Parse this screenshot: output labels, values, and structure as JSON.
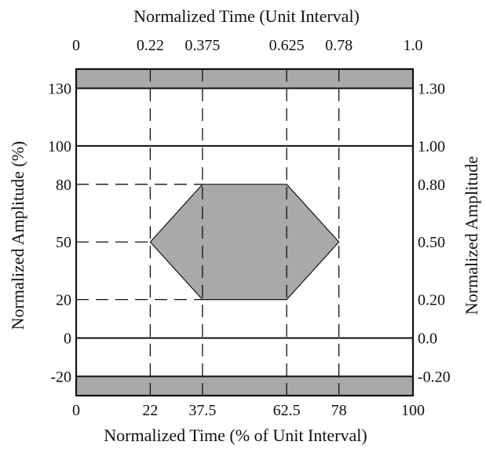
{
  "chart_data": {
    "type": "mask-diagram",
    "top_axis": {
      "title": "Normalized Time (Unit Interval)",
      "ticks": [
        {
          "value": 0,
          "label": "0"
        },
        {
          "value": 22,
          "label": "0.22"
        },
        {
          "value": 37.5,
          "label": "0.375"
        },
        {
          "value": 62.5,
          "label": "0.625"
        },
        {
          "value": 78,
          "label": "0.78"
        },
        {
          "value": 100,
          "label": "1.0"
        }
      ]
    },
    "bottom_axis": {
      "title": "Normalized Time (% of Unit Interval)",
      "range": [
        0,
        100
      ],
      "ticks": [
        {
          "value": 0,
          "label": "0"
        },
        {
          "value": 22,
          "label": "22"
        },
        {
          "value": 37.5,
          "label": "37.5"
        },
        {
          "value": 62.5,
          "label": "62.5"
        },
        {
          "value": 78,
          "label": "78"
        },
        {
          "value": 100,
          "label": "100"
        }
      ]
    },
    "left_axis": {
      "title": "Normalized Amplitude (%)",
      "range": [
        -30,
        140
      ],
      "ticks": [
        {
          "value": 130,
          "label": "130"
        },
        {
          "value": 100,
          "label": "100"
        },
        {
          "value": 80,
          "label": "80"
        },
        {
          "value": 50,
          "label": "50"
        },
        {
          "value": 20,
          "label": "20"
        },
        {
          "value": 0,
          "label": "0"
        },
        {
          "value": -20,
          "label": "-20"
        }
      ]
    },
    "right_axis": {
      "title": "Normalized Amplitude",
      "ticks": [
        {
          "value": 130,
          "label": "1.30"
        },
        {
          "value": 100,
          "label": "1.00"
        },
        {
          "value": 80,
          "label": "0.80"
        },
        {
          "value": 50,
          "label": "0.50"
        },
        {
          "value": 20,
          "label": "0.20"
        },
        {
          "value": 0,
          "label": "0.0"
        },
        {
          "value": -20,
          "label": "-0.20"
        }
      ]
    },
    "keepout_top": {
      "from": 130,
      "to": 140
    },
    "keepout_bottom": {
      "from": -30,
      "to": -20
    },
    "solid_levels": [
      100,
      0
    ],
    "mask_polygon": [
      {
        "x": 22,
        "y": 50
      },
      {
        "x": 37.5,
        "y": 80
      },
      {
        "x": 62.5,
        "y": 80
      },
      {
        "x": 78,
        "y": 50
      },
      {
        "x": 62.5,
        "y": 20
      },
      {
        "x": 37.5,
        "y": 20
      }
    ],
    "dashed_verticals": [
      22,
      37.5,
      62.5,
      78
    ],
    "dashed_horizontals": [
      {
        "y": 80,
        "to_x": 37.5
      },
      {
        "y": 50,
        "to_x": 22
      },
      {
        "y": 20,
        "to_x": 37.5
      }
    ],
    "colors": {
      "fill": "#a9a9a9",
      "line": "#111111",
      "background": "#ffffff"
    }
  }
}
